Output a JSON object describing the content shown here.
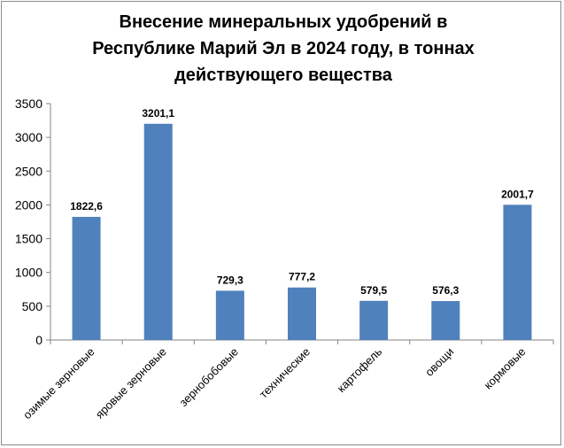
{
  "chart_data": {
    "type": "bar",
    "title_lines": [
      "Внесение минеральных удобрений в",
      "Республике Марий Эл в 2024 году, в тоннах",
      "действующего вещества"
    ],
    "categories": [
      "озимые зерновые",
      "яровые зерновые",
      "зернобобовые",
      "технические",
      "картофель",
      "овощи",
      "кормовые"
    ],
    "values": [
      1822.6,
      3201.1,
      729.3,
      777.2,
      579.5,
      576.3,
      2001.7
    ],
    "value_labels": [
      "1822,6",
      "3201,1",
      "729,3",
      "777,2",
      "579,5",
      "576,3",
      "2001,7"
    ],
    "y_ticks": [
      "0",
      "500",
      "1000",
      "1500",
      "2000",
      "2500",
      "3000",
      "3500"
    ],
    "ylim": [
      0,
      3500
    ],
    "bar_color": "#4f81bd",
    "grid": false,
    "legend": "none"
  }
}
